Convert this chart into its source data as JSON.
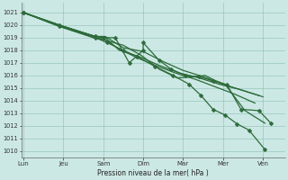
{
  "bg_color": "#cce8e4",
  "grid_color": "#8bbfb5",
  "line_color": "#2d6b3a",
  "xlabel_text": "Pression niveau de la mer( hPa )",
  "ylim": [
    1009.5,
    1021.75
  ],
  "yticks": [
    1010,
    1011,
    1012,
    1013,
    1014,
    1015,
    1016,
    1017,
    1018,
    1019,
    1020,
    1021
  ],
  "xtick_labels": [
    "Lun",
    "Jeu",
    "Sam",
    "Dim",
    "Mar",
    "Mer",
    "Ven"
  ],
  "xtick_positions": [
    0,
    1,
    2,
    3,
    4,
    5,
    6
  ],
  "xlim": [
    -0.05,
    6.55
  ],
  "lines": [
    {
      "x": [
        0.0,
        0.9,
        1.8,
        2.05,
        2.5,
        3.0,
        3.5,
        4.0,
        4.5,
        5.0,
        5.5,
        6.0
      ],
      "y": [
        1021.0,
        1020.0,
        1019.1,
        1019.1,
        1018.2,
        1017.9,
        1017.1,
        1016.4,
        1015.9,
        1015.3,
        1014.8,
        1014.3
      ],
      "markers": false
    },
    {
      "x": [
        0.0,
        0.9,
        1.8,
        2.05,
        2.4,
        2.9,
        3.4,
        3.9,
        4.4,
        4.9,
        5.4,
        5.9
      ],
      "y": [
        1021.0,
        1020.0,
        1019.1,
        1019.0,
        1018.0,
        1017.5,
        1016.8,
        1016.2,
        1015.8,
        1015.3,
        1014.9,
        1014.4
      ],
      "markers": false
    },
    {
      "x": [
        0.0,
        0.9,
        1.75,
        2.0,
        2.4,
        2.85,
        3.3,
        3.8,
        4.3,
        4.8,
        5.3,
        5.8
      ],
      "y": [
        1021.0,
        1019.9,
        1019.0,
        1018.9,
        1018.1,
        1017.4,
        1016.8,
        1016.2,
        1015.7,
        1015.1,
        1014.5,
        1013.8
      ],
      "markers": false
    },
    {
      "x": [
        0.0,
        0.9,
        1.8,
        2.0,
        2.3,
        2.65,
        3.0,
        3.0,
        3.4,
        3.7,
        4.05,
        4.4,
        4.75,
        5.1,
        5.45,
        5.9,
        6.2
      ],
      "y": [
        1021.0,
        1020.0,
        1019.1,
        1019.0,
        1019.0,
        1017.0,
        1018.0,
        1018.6,
        1017.2,
        1016.5,
        1016.0,
        1015.9,
        1015.55,
        1015.25,
        1013.3,
        1013.2,
        1012.2
      ],
      "markers": true
    },
    {
      "x": [
        0.0,
        0.9,
        1.8,
        2.05,
        2.5,
        2.95,
        3.4,
        3.85,
        4.3,
        4.55,
        4.8,
        5.05,
        5.55,
        6.05
      ],
      "y": [
        1021.0,
        1020.0,
        1019.0,
        1018.8,
        1018.4,
        1017.6,
        1016.5,
        1015.8,
        1015.9,
        1016.0,
        1015.6,
        1015.3,
        1013.2,
        1012.2
      ],
      "markers": false
    },
    {
      "x": [
        0.0,
        0.9,
        1.8,
        2.1,
        2.5,
        2.85,
        3.3,
        3.75,
        4.15,
        4.45,
        4.75,
        5.05,
        5.35,
        5.65,
        6.05
      ],
      "y": [
        1021.0,
        1019.9,
        1019.0,
        1018.6,
        1018.0,
        1017.5,
        1016.7,
        1016.0,
        1015.3,
        1014.4,
        1013.3,
        1012.85,
        1012.15,
        1011.65,
        1010.1
      ],
      "markers": true
    }
  ],
  "line_widths": [
    0.9,
    0.9,
    0.9,
    0.9,
    0.9,
    0.9
  ],
  "marker_size": 2.5
}
